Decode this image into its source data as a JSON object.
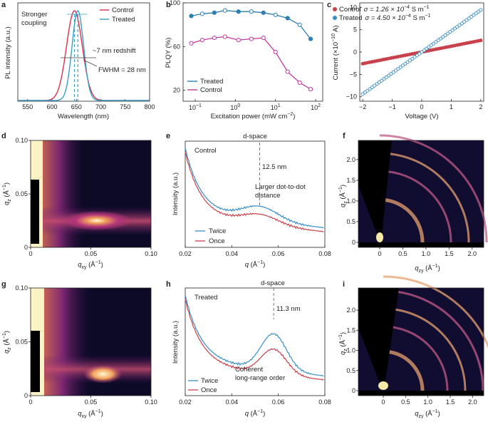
{
  "chart_data": [
    {
      "panel": "a",
      "type": "line",
      "xlabel": "Wavelength (nm)",
      "ylabel": "PL intensity (a.u.)",
      "xlim": [
        530,
        800
      ],
      "xticks": [
        550,
        600,
        650,
        700,
        750,
        800
      ],
      "legend": [
        "Control",
        "Treated"
      ],
      "series": [
        {
          "name": "Control",
          "color": "#d6304f",
          "peak_nm": 646,
          "fwhm_nm": 38
        },
        {
          "name": "Treated",
          "color": "#3a9ec6",
          "peak_nm": 653,
          "fwhm_nm": 28
        }
      ],
      "annotations": [
        "Stronger coupling",
        "~7 nm redshift",
        "FWHM = 28 nm"
      ]
    },
    {
      "panel": "b",
      "type": "line",
      "xlabel_main": "Excitation power (mW cm",
      "xlabel_sup": "−2",
      "xlabel_end": ")",
      "ylabel": "PLQY (%)",
      "xscale": "log",
      "xlim": [
        0.05,
        150
      ],
      "ylim": [
        10,
        100
      ],
      "xtick_values": [
        0.1,
        1,
        10,
        100
      ],
      "xtick_base": [
        "10",
        "10",
        "10",
        "10"
      ],
      "xtick_exp": [
        "−1",
        "0",
        "1",
        "2"
      ],
      "yticks": [
        20,
        60,
        100
      ],
      "series": [
        {
          "name": "Treated",
          "color": "#2e7eb3",
          "x": [
            0.08,
            0.15,
            0.3,
            0.55,
            1.2,
            2.5,
            5,
            10,
            20,
            40,
            75
          ],
          "y": [
            88,
            90,
            91,
            93,
            92,
            92,
            91,
            89,
            86,
            80,
            67
          ]
        },
        {
          "name": "Control",
          "color": "#c13aa0",
          "x": [
            0.08,
            0.15,
            0.3,
            0.55,
            1.2,
            2.5,
            5,
            10,
            20,
            40,
            75
          ],
          "y": [
            63,
            66,
            68,
            69,
            66,
            67,
            68,
            55,
            37,
            27,
            21
          ]
        }
      ],
      "legend": [
        "Treated",
        "Control"
      ]
    },
    {
      "panel": "c",
      "type": "scatter",
      "xlabel": "Voltage (V)",
      "ylabel_main": "Current (×10",
      "ylabel_sup": "−10",
      "ylabel_end": " A)",
      "xlim": [
        -2.1,
        2.1
      ],
      "ylim": [
        -11,
        11
      ],
      "xticks": [
        -2,
        -1,
        0,
        1,
        2
      ],
      "xtick_labels": [
        "−2",
        "−1",
        "0",
        "1",
        "2"
      ],
      "yticks": [
        -10,
        -5,
        0,
        5,
        10
      ],
      "ytick_labels": [
        "−10",
        "−5",
        "0",
        "5",
        "10"
      ],
      "series": [
        {
          "name": "Control",
          "color": "#c8414b",
          "slope": 1.3
        },
        {
          "name": "Treated",
          "color": "#3a8ec6",
          "slope": 4.7
        }
      ],
      "legend": [
        {
          "name": "Control",
          "main": "σ = 1.26 × 10",
          "sup": "−4",
          "unit": " S m",
          "unit_sup": "−1"
        },
        {
          "name": "Treated",
          "main": "σ = 4.50 × 10",
          "sup": "−4",
          "unit": " S m",
          "unit_sup": "−1"
        }
      ]
    },
    {
      "panel": "d",
      "type": "heatmap",
      "xlabel_main": "q",
      "xlabel_sub": "xy",
      "xlabel_unit": " (Å",
      "xlabel_sup": "−1",
      "xlabel_end": ")",
      "ylabel_main": "q",
      "ylabel_sub": "z",
      "ylabel_unit": " (Å",
      "ylabel_sup": "−1",
      "ylabel_end": ")",
      "xlim": [
        0,
        0.1
      ],
      "ylim": [
        0,
        0.1
      ],
      "xtick_labels": [
        "0",
        "0.05",
        "0.10"
      ],
      "ytick_labels": [
        "0",
        "0.05",
        "0.10"
      ],
      "peak": {
        "qxy": 0.055,
        "qz": 0.025
      }
    },
    {
      "panel": "e",
      "type": "line",
      "title": "d-space",
      "inset_label": "Control",
      "xlabel_main": "q",
      "xlabel_unit": " (Å",
      "xlabel_sup": "−1",
      "xlabel_end": ")",
      "ylabel": "Intensity (a.u.)",
      "xlim": [
        0.02,
        0.08
      ],
      "xticks": [
        "0.02",
        "0.04",
        "0.06",
        "0.08"
      ],
      "peak_q": 0.052,
      "annotations": [
        "12.5 nm",
        "Larger dot-to-dot",
        "distance"
      ],
      "legend": [
        {
          "name": "Twice",
          "color": "#3a8ec6"
        },
        {
          "name": "Once",
          "color": "#c8414b"
        }
      ]
    },
    {
      "panel": "f",
      "type": "heatmap",
      "xlabel_main": "q",
      "xlabel_sub": "zy",
      "xlabel_unit": " (Å",
      "xlabel_sup": "−1",
      "xlabel_end": ")",
      "ylabel_main": "q",
      "ylabel_sub": "z",
      "ylabel_unit": " (Å",
      "ylabel_sup": "−1",
      "ylabel_end": ")",
      "xtick_labels": [
        "0",
        "0.5",
        "1.0",
        "1.5",
        "2.0"
      ],
      "ytick_labels": [
        "0",
        "0.5",
        "1.0",
        "1.5",
        "2.0"
      ]
    },
    {
      "panel": "g",
      "type": "heatmap",
      "xlabel_main": "q",
      "xlabel_sub": "xy",
      "xlabel_unit": " (Å",
      "xlabel_sup": "−1",
      "xlabel_end": ")",
      "ylabel_main": "q",
      "ylabel_sub": "z",
      "ylabel_unit": " (Å",
      "ylabel_sup": "−1",
      "ylabel_end": ")",
      "xlim": [
        0,
        0.1
      ],
      "ylim": [
        0,
        0.1
      ],
      "xtick_labels": [
        "0",
        "0.05",
        "0.10"
      ],
      "ytick_labels": [
        "0",
        "0.05",
        "0.10"
      ],
      "peak": {
        "qxy": 0.06,
        "qz": 0.02
      }
    },
    {
      "panel": "h",
      "type": "line",
      "title": "d-space",
      "inset_label": "Treated",
      "xlabel_main": "q",
      "xlabel_unit": " (Å",
      "xlabel_sup": "−1",
      "xlabel_end": ")",
      "ylabel": "Intensity (a.u.)",
      "xlim": [
        0.02,
        0.08
      ],
      "xticks": [
        "0.02",
        "0.04",
        "0.06",
        "0.08"
      ],
      "peak_q": 0.058,
      "annotations": [
        "11.3 nm",
        "Coherent",
        "long-range order"
      ],
      "legend": [
        {
          "name": "Twice",
          "color": "#3a8ec6"
        },
        {
          "name": "Once",
          "color": "#c8414b"
        }
      ]
    },
    {
      "panel": "i",
      "type": "heatmap",
      "xlabel_main": "q",
      "xlabel_sub": "zy",
      "xlabel_unit": " (Å",
      "xlabel_sup": "−1",
      "xlabel_end": ")",
      "ylabel_main": "q",
      "ylabel_sub": "z",
      "ylabel_unit": " (Å",
      "ylabel_sup": "−1",
      "ylabel_end": ")",
      "xtick_labels": [
        "0",
        "0.5",
        "1.0",
        "1.5",
        "2.0"
      ],
      "ytick_labels": [
        "0",
        "0.5",
        "1.0",
        "1.5",
        "2.0"
      ]
    }
  ],
  "panel_labels": [
    "a",
    "b",
    "c",
    "d",
    "e",
    "f",
    "g",
    "h",
    "i"
  ]
}
